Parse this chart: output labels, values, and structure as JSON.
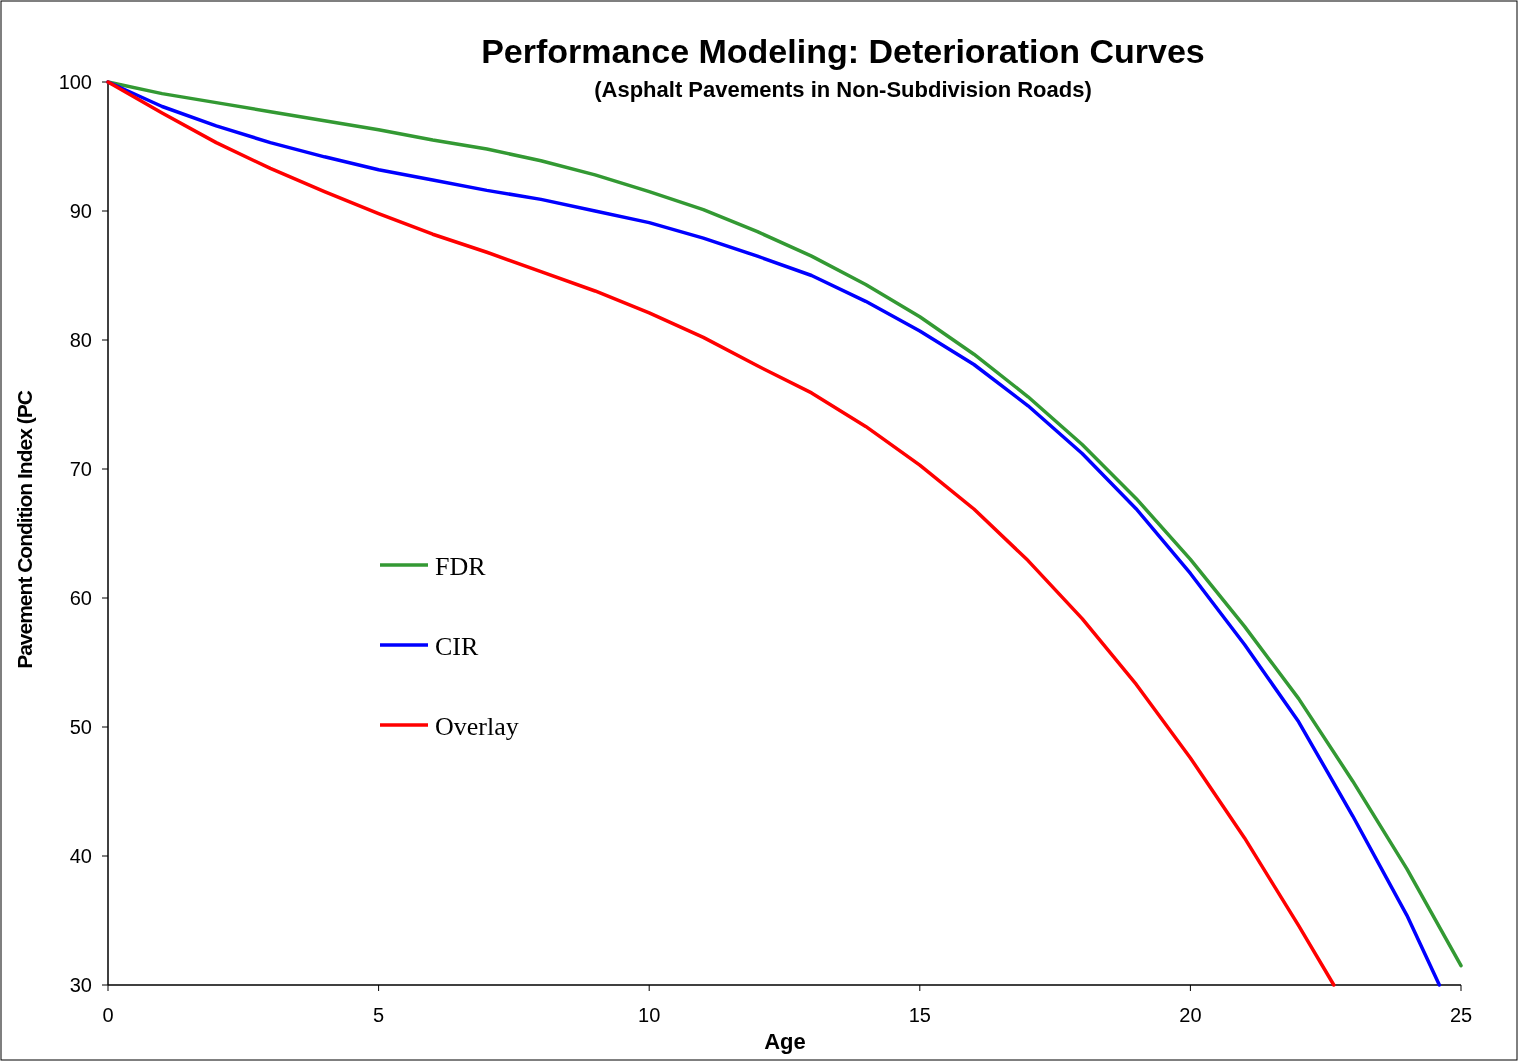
{
  "chart_data": {
    "type": "line",
    "title": "Performance Modeling: Deterioration Curves",
    "subtitle": "(Asphalt Pavements in Non-Subdivision Roads)",
    "xlabel": "Age",
    "ylabel": "Pavement Condition Index (PC",
    "xlim": [
      0,
      25
    ],
    "xticks": [
      0,
      5,
      10,
      15,
      20,
      25
    ],
    "ylim": [
      30,
      100
    ],
    "yticks": [
      30,
      40,
      50,
      60,
      70,
      80,
      90,
      100
    ],
    "grid": false,
    "legend": "left",
    "marker": "none",
    "line_style": "solid",
    "series": [
      {
        "name": "FDR",
        "color": "#339933",
        "x": [
          0,
          1,
          2,
          3,
          4,
          5,
          6,
          7,
          8,
          9,
          10,
          11,
          12,
          13,
          14,
          15,
          16,
          17,
          18,
          19,
          20,
          21,
          22,
          23,
          24,
          25
        ],
        "values": [
          100,
          99.1,
          98.4,
          97.7,
          97,
          96.3,
          95.5,
          94.8,
          93.9,
          92.8,
          91.5,
          90.1,
          88.4,
          86.5,
          84.3,
          81.8,
          78.9,
          75.6,
          71.9,
          67.7,
          63,
          57.8,
          52.2,
          45.8,
          39,
          31.5
        ]
      },
      {
        "name": "CIR",
        "color": "#0000ff",
        "x": [
          0,
          1,
          2,
          3,
          4,
          5,
          6,
          7,
          8,
          9,
          10,
          11,
          12,
          13,
          14,
          15,
          16,
          17,
          18,
          19,
          20,
          21,
          22,
          23,
          24,
          24.6
        ],
        "values": [
          100,
          98.1,
          96.6,
          95.3,
          94.2,
          93.2,
          92.4,
          91.6,
          90.9,
          90,
          89.1,
          87.9,
          86.5,
          85,
          83,
          80.7,
          78.1,
          74.9,
          71.2,
          66.9,
          61.9,
          56.4,
          50.4,
          43.1,
          35.4,
          30
        ]
      },
      {
        "name": "Overlay",
        "color": "#ff0000",
        "x": [
          0,
          1,
          2,
          3,
          4,
          5,
          6,
          7,
          8,
          9,
          10,
          11,
          12,
          13,
          14,
          15,
          16,
          17,
          18,
          19,
          20,
          21,
          22,
          22.65
        ],
        "values": [
          100,
          97.6,
          95.3,
          93.3,
          91.5,
          89.8,
          88.2,
          86.8,
          85.3,
          83.8,
          82.1,
          80.2,
          78,
          75.9,
          73.3,
          70.3,
          66.9,
          62.9,
          58.4,
          53.3,
          47.6,
          41.4,
          34.6,
          30
        ]
      }
    ]
  }
}
